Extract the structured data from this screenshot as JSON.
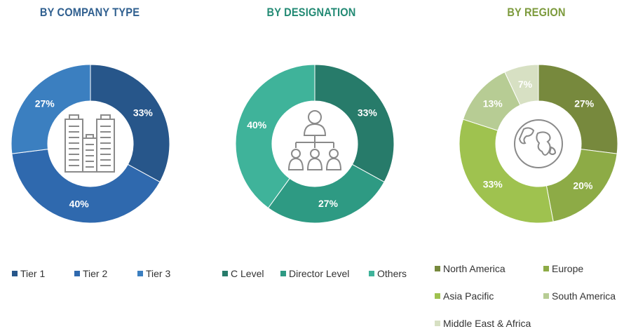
{
  "chart_data": [
    {
      "type": "pie",
      "donut": true,
      "title": "BY COMPANY TYPE",
      "title_color": "#2f5f8f",
      "categories": [
        "Tier 1",
        "Tier 2",
        "Tier 3"
      ],
      "values": [
        33,
        40,
        27
      ],
      "labels": [
        "33%",
        "40%",
        "27%"
      ],
      "colors": [
        "#27568a",
        "#2f69ae",
        "#3b7fc0"
      ],
      "center_icon": "buildings-icon",
      "legend_placement": "bottom"
    },
    {
      "type": "pie",
      "donut": true,
      "title": "BY DESIGNATION",
      "title_color": "#238a74",
      "categories": [
        "C Level",
        "Director Level",
        "Others"
      ],
      "values": [
        33,
        27,
        40
      ],
      "labels": [
        "33%",
        "27%",
        "40%"
      ],
      "colors": [
        "#277b6a",
        "#2e9a83",
        "#3fb39a"
      ],
      "center_icon": "org-hierarchy-icon",
      "legend_placement": "bottom"
    },
    {
      "type": "pie",
      "donut": true,
      "title": "BY REGION",
      "title_color": "#7c9a3c",
      "categories": [
        "North America",
        "Europe",
        "Asia Pacific",
        "South America",
        "Middle East & Africa"
      ],
      "values": [
        27,
        20,
        33,
        13,
        7
      ],
      "labels": [
        "27%",
        "20%",
        "33%",
        "13%",
        "7%"
      ],
      "colors": [
        "#77893d",
        "#8dab46",
        "#9fc24f",
        "#b7cc94",
        "#d7e0c3"
      ],
      "center_icon": "globe-icon",
      "legend_placement": "bottom"
    }
  ]
}
